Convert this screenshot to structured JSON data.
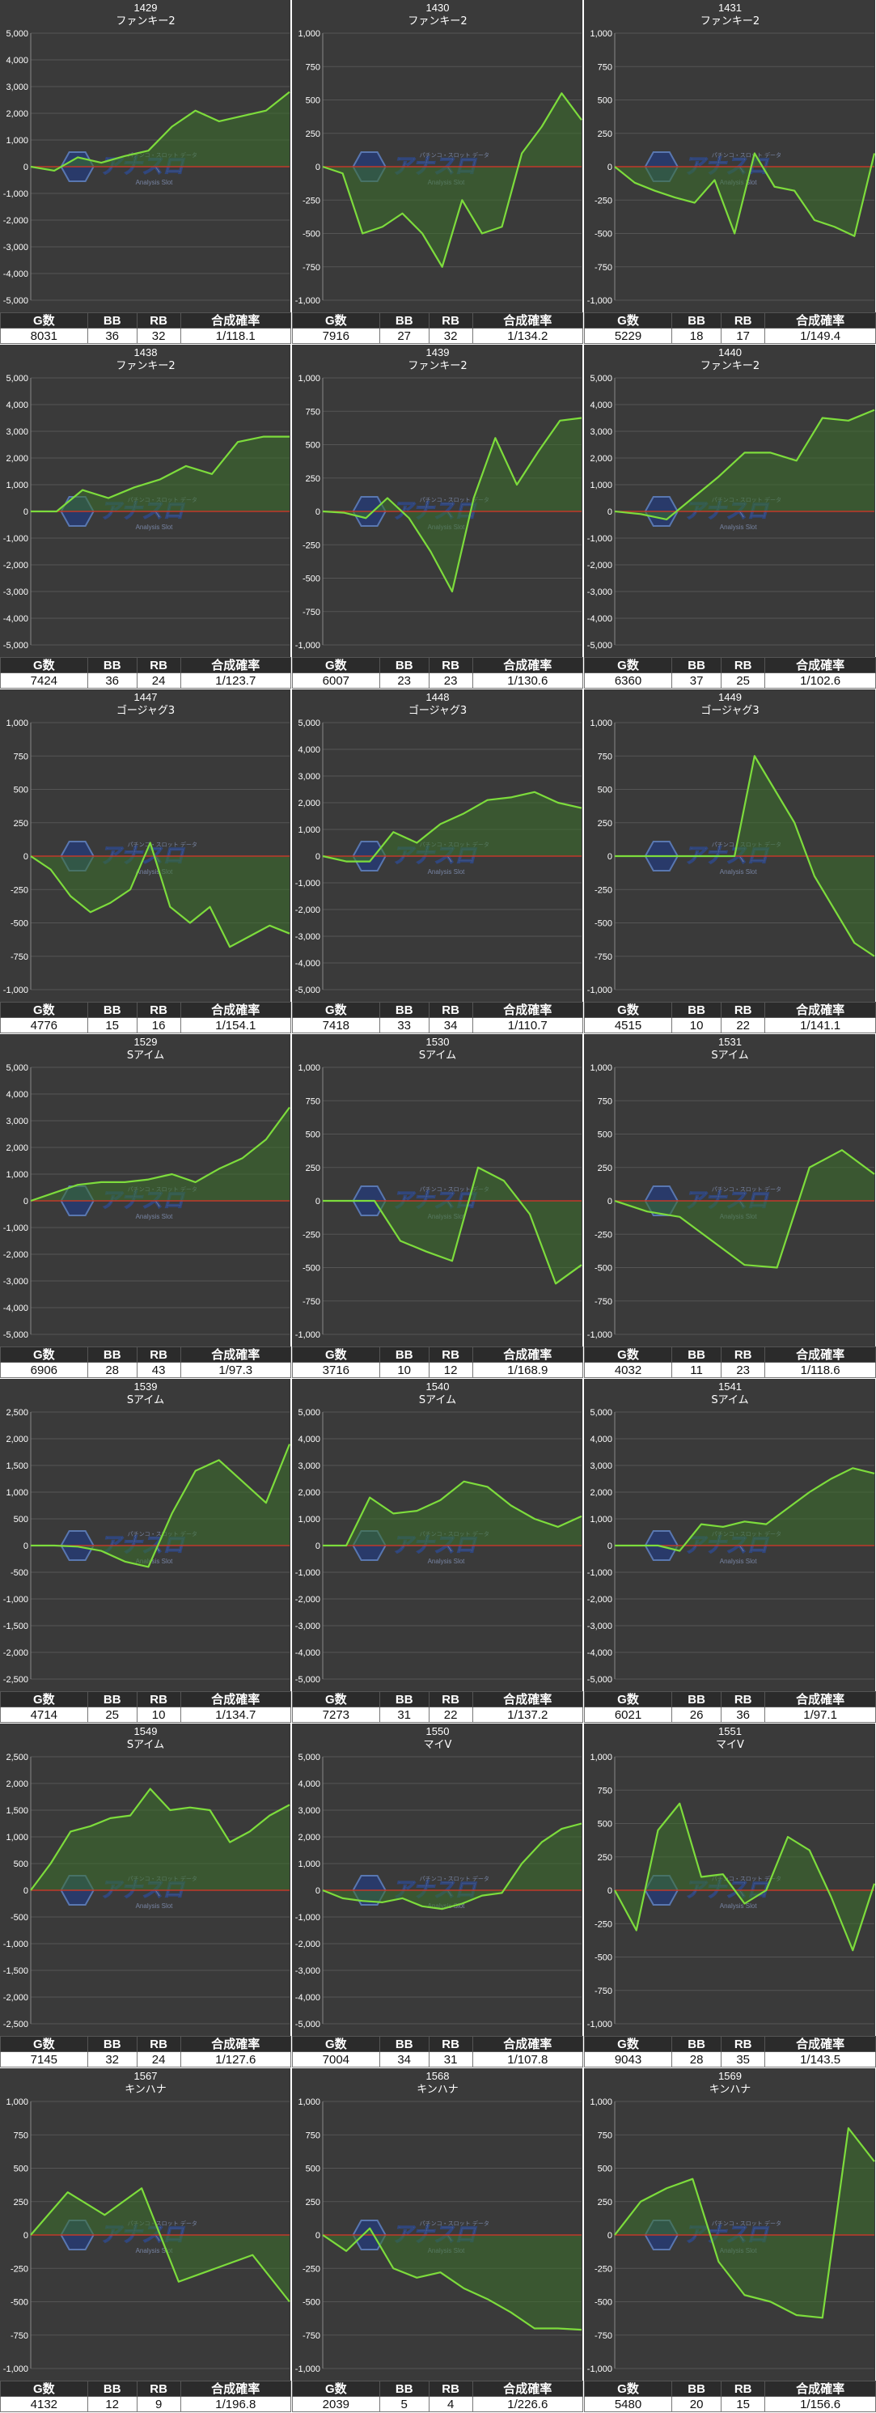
{
  "chart_data": [
    {
      "type": "area",
      "title": "1429",
      "subtitle": "ファンキー2",
      "ylim": [
        -5000,
        5000
      ],
      "yticks": [
        "5,000",
        "4,000",
        "3,000",
        "2,000",
        "1,000",
        "0",
        "-1,000",
        "-2,000",
        "-3,000",
        "-4,000",
        "-5,000"
      ],
      "values": [
        0,
        -150,
        350,
        150,
        400,
        600,
        1500,
        2100,
        1700,
        1900,
        2100,
        2800
      ],
      "stats": {
        "headers": [
          "G数",
          "BB",
          "RB",
          "合成確率"
        ],
        "values": [
          "8031",
          "36",
          "32",
          "1/118.1"
        ]
      }
    },
    {
      "type": "area",
      "title": "1430",
      "subtitle": "ファンキー2",
      "ylim": [
        -1000,
        1000
      ],
      "yticks": [
        "1,000",
        "750",
        "500",
        "250",
        "0",
        "-250",
        "-500",
        "-750",
        "-1,000"
      ],
      "values": [
        0,
        -50,
        -500,
        -450,
        -350,
        -500,
        -750,
        -250,
        -500,
        -450,
        100,
        300,
        550,
        350
      ],
      "stats": {
        "headers": [
          "G数",
          "BB",
          "RB",
          "合成確率"
        ],
        "values": [
          "7916",
          "27",
          "32",
          "1/134.2"
        ]
      }
    },
    {
      "type": "area",
      "title": "1431",
      "subtitle": "ファンキー2",
      "ylim": [
        -1000,
        1000
      ],
      "yticks": [
        "1,000",
        "750",
        "500",
        "250",
        "0",
        "-250",
        "-500",
        "-750",
        "-1,000"
      ],
      "values": [
        0,
        -120,
        -180,
        -230,
        -270,
        -100,
        -500,
        100,
        -150,
        -180,
        -400,
        -450,
        -520,
        100
      ],
      "stats": {
        "headers": [
          "G数",
          "BB",
          "RB",
          "合成確率"
        ],
        "values": [
          "5229",
          "18",
          "17",
          "1/149.4"
        ]
      }
    },
    {
      "type": "area",
      "title": "1438",
      "subtitle": "ファンキー2",
      "ylim": [
        -5000,
        5000
      ],
      "yticks": [
        "5,000",
        "4,000",
        "3,000",
        "2,000",
        "1,000",
        "0",
        "-1,000",
        "-2,000",
        "-3,000",
        "-4,000",
        "-5,000"
      ],
      "values": [
        0,
        0,
        800,
        500,
        900,
        1200,
        1700,
        1400,
        2600,
        2800,
        2800
      ],
      "stats": {
        "headers": [
          "G数",
          "BB",
          "RB",
          "合成確率"
        ],
        "values": [
          "7424",
          "36",
          "24",
          "1/123.7"
        ]
      }
    },
    {
      "type": "area",
      "title": "1439",
      "subtitle": "ファンキー2",
      "ylim": [
        -1000,
        1000
      ],
      "yticks": [
        "1,000",
        "750",
        "500",
        "250",
        "0",
        "-250",
        "-500",
        "-750",
        "-1,000"
      ],
      "values": [
        0,
        -10,
        -50,
        100,
        -50,
        -300,
        -600,
        100,
        550,
        200,
        450,
        680,
        700
      ],
      "stats": {
        "headers": [
          "G数",
          "BB",
          "RB",
          "合成確率"
        ],
        "values": [
          "6007",
          "23",
          "23",
          "1/130.6"
        ]
      }
    },
    {
      "type": "area",
      "title": "1440",
      "subtitle": "ファンキー2",
      "ylim": [
        -5000,
        5000
      ],
      "yticks": [
        "5,000",
        "4,000",
        "3,000",
        "2,000",
        "1,000",
        "0",
        "-1,000",
        "-2,000",
        "-3,000",
        "-4,000",
        "-5,000"
      ],
      "values": [
        0,
        -100,
        -300,
        500,
        1300,
        2200,
        2200,
        1900,
        3500,
        3400,
        3800
      ],
      "stats": {
        "headers": [
          "G数",
          "BB",
          "RB",
          "合成確率"
        ],
        "values": [
          "6360",
          "37",
          "25",
          "1/102.6"
        ]
      }
    },
    {
      "type": "area",
      "title": "1447",
      "subtitle": "ゴージャグ3",
      "ylim": [
        -1000,
        1000
      ],
      "yticks": [
        "1,000",
        "750",
        "500",
        "250",
        "0",
        "-250",
        "-500",
        "-750",
        "-1,000"
      ],
      "values": [
        0,
        -100,
        -300,
        -420,
        -350,
        -250,
        100,
        -380,
        -500,
        -380,
        -680,
        -600,
        -520,
        -580
      ],
      "stats": {
        "headers": [
          "G数",
          "BB",
          "RB",
          "合成確率"
        ],
        "values": [
          "4776",
          "15",
          "16",
          "1/154.1"
        ]
      }
    },
    {
      "type": "area",
      "title": "1448",
      "subtitle": "ゴージャグ3",
      "ylim": [
        -5000,
        5000
      ],
      "yticks": [
        "5,000",
        "4,000",
        "3,000",
        "2,000",
        "1,000",
        "0",
        "-1,000",
        "-2,000",
        "-3,000",
        "-4,000",
        "-5,000"
      ],
      "values": [
        0,
        -200,
        -200,
        900,
        500,
        1200,
        1600,
        2100,
        2200,
        2400,
        2000,
        1800
      ],
      "stats": {
        "headers": [
          "G数",
          "BB",
          "RB",
          "合成確率"
        ],
        "values": [
          "7418",
          "33",
          "34",
          "1/110.7"
        ]
      }
    },
    {
      "type": "area",
      "title": "1449",
      "subtitle": "ゴージャグ3",
      "ylim": [
        -1000,
        1000
      ],
      "yticks": [
        "1,000",
        "750",
        "500",
        "250",
        "0",
        "-250",
        "-500",
        "-750",
        "-1,000"
      ],
      "values": [
        0,
        0,
        0,
        0,
        0,
        0,
        0,
        750,
        500,
        250,
        -150,
        -400,
        -650,
        -750
      ],
      "stats": {
        "headers": [
          "G数",
          "BB",
          "RB",
          "合成確率"
        ],
        "values": [
          "4515",
          "10",
          "22",
          "1/141.1"
        ]
      }
    },
    {
      "type": "area",
      "title": "1529",
      "subtitle": "Sアイム",
      "ylim": [
        -5000,
        5000
      ],
      "yticks": [
        "5,000",
        "4,000",
        "3,000",
        "2,000",
        "1,000",
        "0",
        "-1,000",
        "-2,000",
        "-3,000",
        "-4,000",
        "-5,000"
      ],
      "values": [
        0,
        300,
        600,
        700,
        700,
        800,
        1000,
        700,
        1200,
        1600,
        2300,
        3500
      ],
      "stats": {
        "headers": [
          "G数",
          "BB",
          "RB",
          "合成確率"
        ],
        "values": [
          "6906",
          "28",
          "43",
          "1/97.3"
        ]
      }
    },
    {
      "type": "area",
      "title": "1530",
      "subtitle": "Sアイム",
      "ylim": [
        -1000,
        1000
      ],
      "yticks": [
        "1,000",
        "750",
        "500",
        "250",
        "0",
        "-250",
        "-500",
        "-750",
        "-1,000"
      ],
      "values": [
        0,
        0,
        0,
        -300,
        -380,
        -450,
        250,
        150,
        -100,
        -620,
        -480
      ],
      "stats": {
        "headers": [
          "G数",
          "BB",
          "RB",
          "合成確率"
        ],
        "values": [
          "3716",
          "10",
          "12",
          "1/168.9"
        ]
      }
    },
    {
      "type": "area",
      "title": "1531",
      "subtitle": "Sアイム",
      "ylim": [
        -1000,
        1000
      ],
      "yticks": [
        "1,000",
        "750",
        "500",
        "250",
        "0",
        "-250",
        "-500",
        "-750",
        "-1,000"
      ],
      "values": [
        0,
        -80,
        -120,
        -300,
        -480,
        -500,
        250,
        380,
        200
      ],
      "stats": {
        "headers": [
          "G数",
          "BB",
          "RB",
          "合成確率"
        ],
        "values": [
          "4032",
          "11",
          "23",
          "1/118.6"
        ]
      }
    },
    {
      "type": "area",
      "title": "1539",
      "subtitle": "Sアイム",
      "ylim": [
        -2500,
        2500
      ],
      "yticks": [
        "2,500",
        "2,000",
        "1,500",
        "1,000",
        "500",
        "0",
        "-500",
        "-1,000",
        "-1,500",
        "-2,000",
        "-2,500"
      ],
      "values": [
        0,
        0,
        -20,
        -100,
        -300,
        -400,
        600,
        1400,
        1600,
        1200,
        800,
        1900
      ],
      "stats": {
        "headers": [
          "G数",
          "BB",
          "RB",
          "合成確率"
        ],
        "values": [
          "4714",
          "25",
          "10",
          "1/134.7"
        ]
      }
    },
    {
      "type": "area",
      "title": "1540",
      "subtitle": "Sアイム",
      "ylim": [
        -5000,
        5000
      ],
      "yticks": [
        "5,000",
        "4,000",
        "3,000",
        "2,000",
        "1,000",
        "0",
        "-1,000",
        "-2,000",
        "-3,000",
        "-4,000",
        "-5,000"
      ],
      "values": [
        0,
        0,
        1800,
        1200,
        1300,
        1700,
        2400,
        2200,
        1500,
        1000,
        700,
        1100
      ],
      "stats": {
        "headers": [
          "G数",
          "BB",
          "RB",
          "合成確率"
        ],
        "values": [
          "7273",
          "31",
          "22",
          "1/137.2"
        ]
      }
    },
    {
      "type": "area",
      "title": "1541",
      "subtitle": "Sアイム",
      "ylim": [
        -5000,
        5000
      ],
      "yticks": [
        "5,000",
        "4,000",
        "3,000",
        "2,000",
        "1,000",
        "0",
        "-1,000",
        "-2,000",
        "-3,000",
        "-4,000",
        "-5,000"
      ],
      "values": [
        0,
        0,
        0,
        -200,
        800,
        700,
        900,
        800,
        1400,
        2000,
        2500,
        2900,
        2700
      ],
      "stats": {
        "headers": [
          "G数",
          "BB",
          "RB",
          "合成確率"
        ],
        "values": [
          "6021",
          "26",
          "36",
          "1/97.1"
        ]
      }
    },
    {
      "type": "area",
      "title": "1549",
      "subtitle": "Sアイム",
      "ylim": [
        -2500,
        2500
      ],
      "yticks": [
        "2,500",
        "2,000",
        "1,500",
        "1,000",
        "500",
        "0",
        "-500",
        "-1,000",
        "-1,500",
        "-2,000",
        "-2,500"
      ],
      "values": [
        0,
        500,
        1100,
        1200,
        1350,
        1400,
        1900,
        1500,
        1550,
        1500,
        900,
        1100,
        1400,
        1600
      ],
      "stats": {
        "headers": [
          "G数",
          "BB",
          "RB",
          "合成確率"
        ],
        "values": [
          "7145",
          "32",
          "24",
          "1/127.6"
        ]
      }
    },
    {
      "type": "area",
      "title": "1550",
      "subtitle": "マイV",
      "ylim": [
        -5000,
        5000
      ],
      "yticks": [
        "5,000",
        "4,000",
        "3,000",
        "2,000",
        "1,000",
        "0",
        "-1,000",
        "-2,000",
        "-3,000",
        "-4,000",
        "-5,000"
      ],
      "values": [
        0,
        -300,
        -400,
        -450,
        -300,
        -600,
        -700,
        -500,
        -200,
        -100,
        1000,
        1800,
        2300,
        2500
      ],
      "stats": {
        "headers": [
          "G数",
          "BB",
          "RB",
          "合成確率"
        ],
        "values": [
          "7004",
          "34",
          "31",
          "1/107.8"
        ]
      }
    },
    {
      "type": "area",
      "title": "1551",
      "subtitle": "マイV",
      "ylim": [
        -1000,
        1000
      ],
      "yticks": [
        "1,000",
        "750",
        "500",
        "250",
        "0",
        "-250",
        "-500",
        "-750",
        "-1,000"
      ],
      "values": [
        0,
        -300,
        450,
        650,
        100,
        120,
        -100,
        0,
        400,
        300,
        -50,
        -450,
        50
      ],
      "stats": {
        "headers": [
          "G数",
          "BB",
          "RB",
          "合成確率"
        ],
        "values": [
          "9043",
          "28",
          "35",
          "1/143.5"
        ]
      }
    },
    {
      "type": "area",
      "title": "1567",
      "subtitle": "キンハナ",
      "ylim": [
        -1000,
        1000
      ],
      "yticks": [
        "1,000",
        "750",
        "500",
        "250",
        "0",
        "-250",
        "-500",
        "-750",
        "-1,000"
      ],
      "values": [
        0,
        320,
        150,
        350,
        -350,
        -250,
        -150,
        -500
      ],
      "stats": {
        "headers": [
          "G数",
          "BB",
          "RB",
          "合成確率"
        ],
        "values": [
          "4132",
          "12",
          "9",
          "1/196.8"
        ]
      }
    },
    {
      "type": "area",
      "title": "1568",
      "subtitle": "キンハナ",
      "ylim": [
        -1000,
        1000
      ],
      "yticks": [
        "1,000",
        "750",
        "500",
        "250",
        "0",
        "-250",
        "-500",
        "-750",
        "-1,000"
      ],
      "values": [
        0,
        -120,
        50,
        -250,
        -320,
        -280,
        -400,
        -480,
        -580,
        -700,
        -700,
        -710
      ],
      "stats": {
        "headers": [
          "G数",
          "BB",
          "RB",
          "合成確率"
        ],
        "values": [
          "2039",
          "5",
          "4",
          "1/226.6"
        ]
      }
    },
    {
      "type": "area",
      "title": "1569",
      "subtitle": "キンハナ",
      "ylim": [
        -1000,
        1000
      ],
      "yticks": [
        "1,000",
        "750",
        "500",
        "250",
        "0",
        "-250",
        "-500",
        "-750",
        "-1,000"
      ],
      "values": [
        0,
        250,
        350,
        420,
        -200,
        -450,
        -500,
        -600,
        -620,
        800,
        550
      ],
      "stats": {
        "headers": [
          "G数",
          "BB",
          "RB",
          "合成確率"
        ],
        "values": [
          "5480",
          "20",
          "15",
          "1/156.6"
        ]
      }
    }
  ],
  "watermark": {
    "logo_text": "アナスロ",
    "tagline": "Analysis Slot",
    "top_line": "パチンコ・スロット データ"
  },
  "colors": {
    "plot_bg": "#3a3a3a",
    "grid": "#555555",
    "line": "#7ddc3c",
    "fill": "#3a6f2a",
    "zero_line": "#c0392b",
    "header_bg": "#2b2b2b"
  }
}
